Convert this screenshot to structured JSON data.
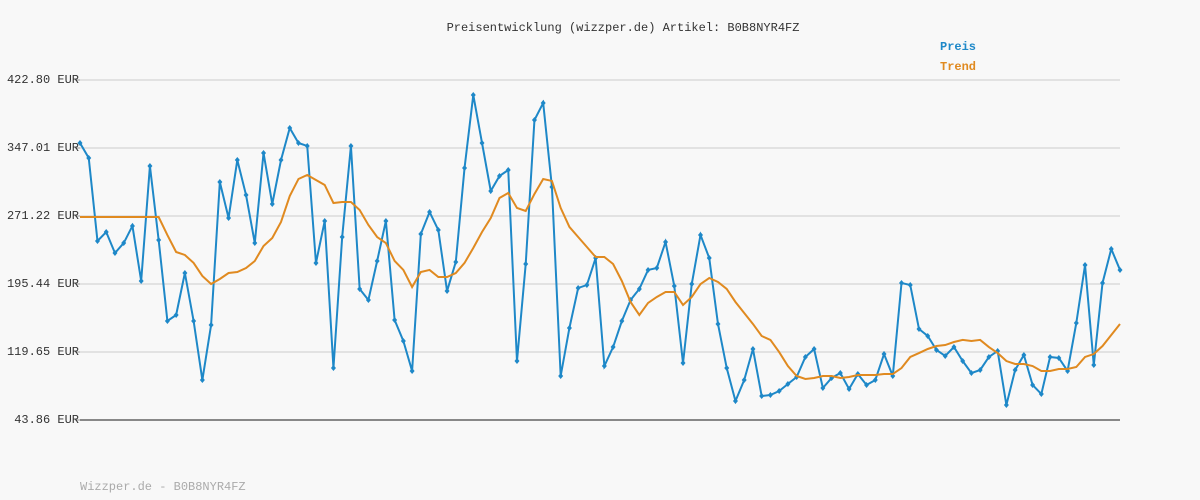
{
  "chart_data": {
    "type": "line",
    "title": "Preisentwicklung (wizzper.de) Artikel: B0B8NYR4FZ",
    "footer": "Wizzper.de - B0B8NYR4FZ",
    "ylim": [
      43.86,
      422.8
    ],
    "yticks": [
      {
        "value": 43.86,
        "label": "43.86 EUR"
      },
      {
        "value": 119.65,
        "label": "119.65 EUR"
      },
      {
        "value": 195.44,
        "label": "195.44 EUR"
      },
      {
        "value": 271.22,
        "label": "271.22 EUR"
      },
      {
        "value": 347.01,
        "label": "347.01 EUR"
      },
      {
        "value": 422.8,
        "label": "422.80 EUR"
      }
    ],
    "grid": true,
    "legend": "top-right",
    "series": [
      {
        "name": "Preis",
        "color": "#1e88c8",
        "markers": true,
        "values": [
          352.6,
          335.9,
          243.4,
          253.4,
          230,
          241.1,
          260.1,
          198.8,
          327,
          244.5,
          154.2,
          160.9,
          207.7,
          154.2,
          88.4,
          149.7,
          309.1,
          269,
          333.6,
          294.6,
          241.1,
          341.5,
          284.6,
          333.6,
          369.3,
          352.6,
          349.3,
          218.9,
          265.7,
          101.8,
          247.8,
          349.3,
          189.9,
          177.6,
          221.1,
          265.7,
          155.3,
          131.9,
          98.5,
          251.2,
          275.7,
          255.6,
          187.6,
          220,
          324.7,
          406.1,
          352.6,
          299.1,
          315.8,
          322.5,
          109.6,
          217.7,
          378.2,
          397.2,
          303.6,
          92.9,
          146.4,
          191,
          194.3,
          224.4,
          104,
          125.2,
          154.2,
          177.6,
          189.9,
          211.1,
          213.3,
          242.3,
          193.2,
          107.4,
          195.4,
          250.1,
          224.4,
          150.9,
          101.8,
          65,
          88.4,
          123,
          70.6,
          71.7,
          76.2,
          84,
          91.8,
          114.1,
          123,
          79.5,
          90.7,
          96.2,
          78.4,
          95.1,
          82.9,
          88.4,
          117.4,
          92.9,
          196.6,
          194.3,
          145.3,
          137.5,
          121.9,
          115.2,
          125.2,
          109.6,
          96.2,
          99.6,
          114.1,
          120.8,
          60.6,
          99.6,
          116.3,
          82.9,
          72.8,
          114.1,
          113,
          98.5,
          152,
          216.6,
          105.2,
          196.6,
          234.5,
          211.1
        ]
      },
      {
        "name": "Trend",
        "color": "#e08a20",
        "markers": false,
        "values": [
          270.1,
          270.1,
          270.1,
          270.1,
          270.1,
          270.1,
          270.1,
          270.1,
          270.1,
          270.1,
          250,
          231.1,
          227.8,
          218.9,
          204.4,
          195.4,
          201,
          207.7,
          208.8,
          213.3,
          221.1,
          237.8,
          246.7,
          264.6,
          293.5,
          312.5,
          316.9,
          311.4,
          305.8,
          285.7,
          286.8,
          286.8,
          277.9,
          261.2,
          247.8,
          241.1,
          221.1,
          211.1,
          192.1,
          208.8,
          211.1,
          203.2,
          203.2,
          207.7,
          218.9,
          235.6,
          253.4,
          269,
          291.3,
          296.9,
          280.2,
          276.8,
          295.8,
          312.5,
          310.3,
          280.2,
          259,
          247.8,
          236.7,
          225.5,
          225.5,
          217.7,
          198.8,
          175.4,
          160.9,
          174.3,
          181,
          186.5,
          186.5,
          172.1,
          181,
          195.4,
          202.1,
          197.7,
          189.9,
          175.4,
          163.1,
          150.9,
          137.5,
          133.1,
          119.6,
          104,
          92.9,
          89.6,
          90.7,
          92.9,
          92.9,
          90.7,
          91.8,
          94,
          94,
          94,
          95.1,
          95.1,
          101.8,
          114.1,
          118.5,
          123,
          126.3,
          127.4,
          130.8,
          133.1,
          131.9,
          133.1,
          125.2,
          118.5,
          109.6,
          106.3,
          106.3,
          104,
          98.5,
          98.5,
          100.7,
          100.7,
          102.9,
          114.1,
          117.4,
          126.3,
          138.6,
          150.9
        ]
      }
    ]
  }
}
